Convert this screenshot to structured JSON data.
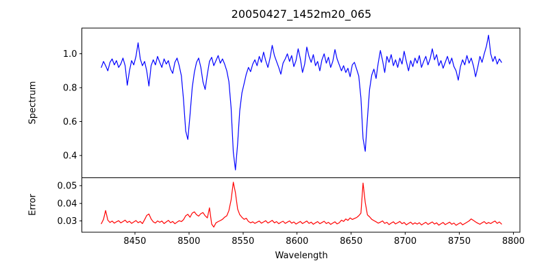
{
  "chart_data": {
    "type": "line",
    "title": "20050427_1452m20_065",
    "xlabel": "Wavelength",
    "xlim": [
      8401,
      8806
    ],
    "x_tick_values": [
      8450,
      8500,
      8550,
      8600,
      8650,
      8700,
      8750,
      8800
    ],
    "x_tick_labels": [
      "8450",
      "8500",
      "8550",
      "8600",
      "8650",
      "8700",
      "8750",
      "8800"
    ],
    "grid": false,
    "legend": "none",
    "wavelength_start": 8419,
    "wavelength_step": 2,
    "panels": [
      {
        "ylabel": "Spectrum",
        "ylim": [
          0.269,
          1.152
        ],
        "y_tick_values": [
          0.4,
          0.6,
          0.8,
          1.0
        ],
        "y_tick_labels": [
          "0.4",
          "0.6",
          "0.8",
          "1.0"
        ],
        "line_color": "#0000ff",
        "series": "flux"
      },
      {
        "ylabel": "Error",
        "ylim": [
          0.0237,
          0.0545
        ],
        "y_tick_values": [
          0.03,
          0.04,
          0.05
        ],
        "y_tick_labels": [
          "0.03",
          "0.04",
          "0.05"
        ],
        "line_color": "#ff0000",
        "series": "error"
      }
    ],
    "flux": [
      0.92,
      0.955,
      0.93,
      0.9,
      0.95,
      0.97,
      0.935,
      0.96,
      0.92,
      0.94,
      0.975,
      0.93,
      0.815,
      0.9,
      0.96,
      0.935,
      0.985,
      1.065,
      0.97,
      0.93,
      0.955,
      0.9,
      0.81,
      0.93,
      0.965,
      0.935,
      0.985,
      0.95,
      0.92,
      0.97,
      0.94,
      0.96,
      0.91,
      0.885,
      0.95,
      0.975,
      0.93,
      0.87,
      0.73,
      0.545,
      0.495,
      0.64,
      0.8,
      0.89,
      0.95,
      0.975,
      0.92,
      0.835,
      0.79,
      0.88,
      0.955,
      0.98,
      0.93,
      0.96,
      0.99,
      0.945,
      0.97,
      0.94,
      0.9,
      0.835,
      0.68,
      0.42,
      0.315,
      0.47,
      0.665,
      0.77,
      0.825,
      0.88,
      0.92,
      0.895,
      0.94,
      0.965,
      0.93,
      0.985,
      0.95,
      1.01,
      0.96,
      0.92,
      0.975,
      1.05,
      0.99,
      0.955,
      0.92,
      0.88,
      0.945,
      0.97,
      1.0,
      0.955,
      0.99,
      0.925,
      0.96,
      1.03,
      0.97,
      0.89,
      0.94,
      1.04,
      0.985,
      0.95,
      0.995,
      0.93,
      0.955,
      0.9,
      0.965,
      1.0,
      0.945,
      0.98,
      0.92,
      0.955,
      1.025,
      0.97,
      0.935,
      0.9,
      0.93,
      0.89,
      0.915,
      0.865,
      0.935,
      0.95,
      0.91,
      0.87,
      0.74,
      0.5,
      0.425,
      0.62,
      0.79,
      0.875,
      0.91,
      0.855,
      0.945,
      1.02,
      0.96,
      0.89,
      0.985,
      0.95,
      0.995,
      0.93,
      0.965,
      0.92,
      0.975,
      0.94,
      1.015,
      0.955,
      0.9,
      0.96,
      0.925,
      0.975,
      0.945,
      0.99,
      0.92,
      0.955,
      0.985,
      0.935,
      0.97,
      1.03,
      0.965,
      0.995,
      0.93,
      0.96,
      0.915,
      0.95,
      0.985,
      0.94,
      0.975,
      0.925,
      0.9,
      0.845,
      0.925,
      0.965,
      0.935,
      0.99,
      0.945,
      0.975,
      0.93,
      0.865,
      0.92,
      0.985,
      0.95,
      1.0,
      1.045,
      1.11,
      1.0,
      0.955,
      0.985,
      0.94,
      0.97,
      0.95
    ],
    "error": [
      0.0285,
      0.031,
      0.036,
      0.0305,
      0.0292,
      0.03,
      0.0288,
      0.0296,
      0.0302,
      0.029,
      0.0297,
      0.0305,
      0.0292,
      0.0299,
      0.0287,
      0.0295,
      0.0303,
      0.0291,
      0.0298,
      0.0286,
      0.0308,
      0.0332,
      0.034,
      0.0312,
      0.0296,
      0.0289,
      0.0301,
      0.0293,
      0.03,
      0.0286,
      0.0295,
      0.0304,
      0.0291,
      0.0298,
      0.0285,
      0.0294,
      0.0302,
      0.0297,
      0.0308,
      0.033,
      0.0338,
      0.0322,
      0.0345,
      0.0352,
      0.0336,
      0.0328,
      0.0342,
      0.0348,
      0.033,
      0.0318,
      0.0375,
      0.0283,
      0.0266,
      0.029,
      0.0297,
      0.0303,
      0.031,
      0.0322,
      0.033,
      0.036,
      0.042,
      0.052,
      0.046,
      0.0368,
      0.0336,
      0.0321,
      0.031,
      0.0316,
      0.0298,
      0.029,
      0.0296,
      0.0287,
      0.0294,
      0.03,
      0.0288,
      0.0295,
      0.0302,
      0.0289,
      0.0296,
      0.0304,
      0.029,
      0.0297,
      0.0285,
      0.0293,
      0.0299,
      0.0287,
      0.0294,
      0.0301,
      0.0288,
      0.0295,
      0.0283,
      0.0291,
      0.0298,
      0.0286,
      0.0293,
      0.03,
      0.0287,
      0.0294,
      0.0282,
      0.029,
      0.0297,
      0.0285,
      0.0292,
      0.0299,
      0.0286,
      0.0293,
      0.0281,
      0.0289,
      0.0296,
      0.0284,
      0.0291,
      0.0305,
      0.0298,
      0.0312,
      0.0304,
      0.0318,
      0.0309,
      0.0315,
      0.032,
      0.033,
      0.0345,
      0.0515,
      0.0405,
      0.0335,
      0.0324,
      0.031,
      0.0303,
      0.0296,
      0.0288,
      0.0294,
      0.0301,
      0.0287,
      0.0293,
      0.028,
      0.0289,
      0.0296,
      0.0284,
      0.0291,
      0.0298,
      0.0285,
      0.0292,
      0.0279,
      0.0287,
      0.0294,
      0.0282,
      0.029,
      0.0283,
      0.0291,
      0.0278,
      0.0286,
      0.0293,
      0.0281,
      0.0288,
      0.0295,
      0.0283,
      0.029,
      0.0277,
      0.0285,
      0.0292,
      0.028,
      0.0287,
      0.0294,
      0.0282,
      0.0289,
      0.0276,
      0.0284,
      0.0291,
      0.0279,
      0.0286,
      0.0293,
      0.0301,
      0.0312,
      0.0304,
      0.0295,
      0.0288,
      0.0282,
      0.029,
      0.0297,
      0.0285,
      0.0292,
      0.0286,
      0.0294,
      0.03,
      0.0287,
      0.0295,
      0.0283
    ]
  }
}
